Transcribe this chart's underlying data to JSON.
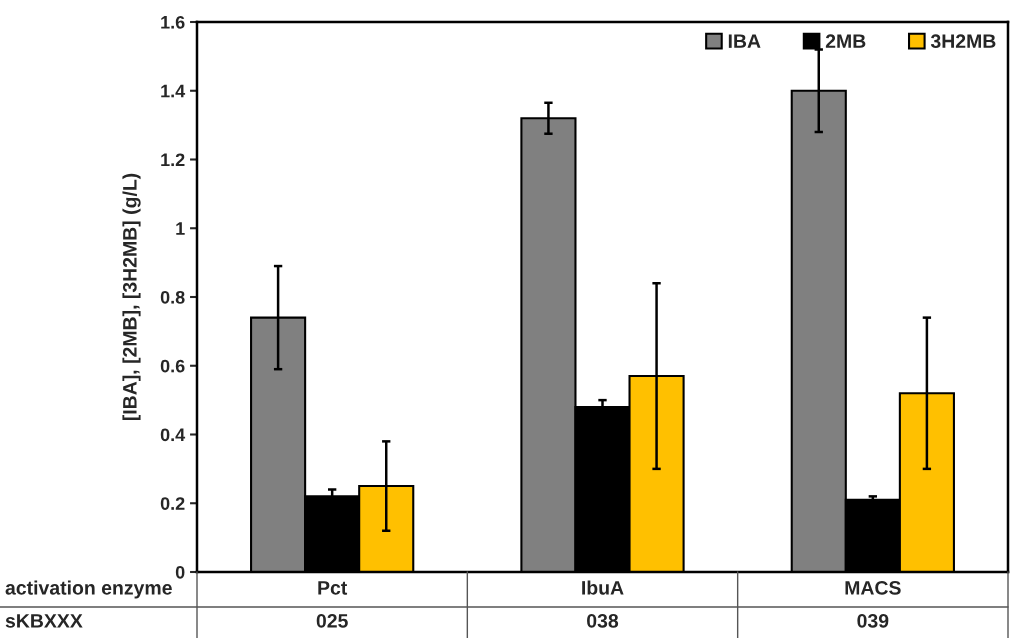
{
  "chart_data": {
    "type": "bar",
    "ylabel": "[IBA], [2MB], [3H2MB] (g/L)",
    "categories": [
      "Pct",
      "IbuA",
      "MACS"
    ],
    "series": [
      {
        "name": "IBA",
        "color": "#808080",
        "values": [
          0.74,
          1.32,
          1.4
        ],
        "errors": [
          0.15,
          0.045,
          0.12
        ]
      },
      {
        "name": "2MB",
        "color": "#000000",
        "values": [
          0.22,
          0.48,
          0.21
        ],
        "errors": [
          0.02,
          0.02,
          0.01
        ]
      },
      {
        "name": "3H2MB",
        "color": "#ffc000",
        "values": [
          0.25,
          0.57,
          0.52
        ],
        "errors": [
          0.13,
          0.27,
          0.22
        ]
      }
    ],
    "ylim": [
      0,
      1.6
    ],
    "yticks": [
      0,
      0.2,
      0.4,
      0.6,
      0.8,
      1,
      1.2,
      1.4,
      1.6
    ],
    "grid": false,
    "legend": "top right",
    "annotations": [
      "activation enzyme",
      "sKBXXX",
      "025",
      "038",
      "039"
    ]
  }
}
